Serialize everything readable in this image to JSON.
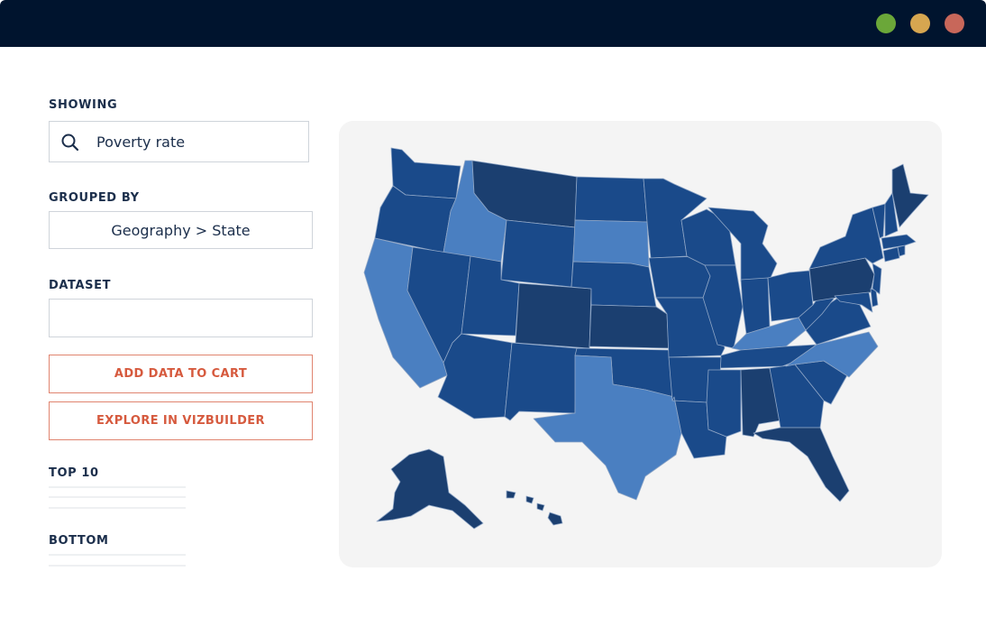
{
  "window": {
    "controls": {
      "green": "#6ba739",
      "yellow": "#d6a650",
      "red": "#c8675a"
    },
    "titlebar_color": "#00142e"
  },
  "sidebar": {
    "showing_label": "SHOWING",
    "search": {
      "icon": "search-icon",
      "value": "Poverty rate"
    },
    "grouped_by_label": "GROUPED BY",
    "grouped_by_value": "Geography > State",
    "dataset_label": "DATASET",
    "dataset_value": "",
    "add_to_cart_label": "ADD DATA TO CART",
    "explore_label": "EXPLORE IN VIZBUILDER",
    "top10_label": "TOP 10",
    "bottom_label": "BOTTOM"
  },
  "map": {
    "type": "choropleth",
    "colors": {
      "dark": "#1b3f70",
      "medium": "#1a4a8a",
      "light": "#4a7fc1",
      "panel": "#f4f4f4"
    }
  }
}
